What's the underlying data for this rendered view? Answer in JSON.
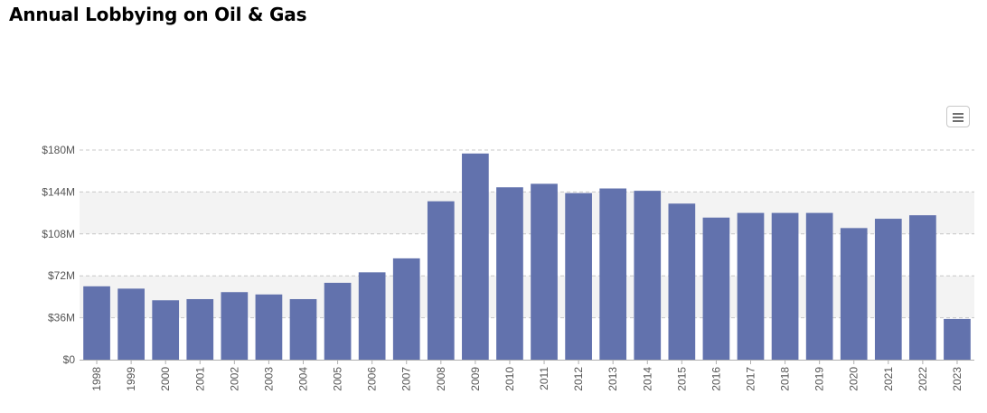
{
  "page": {
    "title": "Annual Lobbying on Oil & Gas"
  },
  "toolbar": {
    "menu_icon": "hamburger-menu-icon"
  },
  "colors": {
    "bar": "#6272ad",
    "grid": "#c8c8c8",
    "band": "#f3f3f3",
    "axis_text": "#555555"
  },
  "chart_data": {
    "type": "bar",
    "title": "Annual Lobbying on Oil & Gas",
    "xlabel": "",
    "ylabel": "",
    "ylim": [
      0,
      180
    ],
    "y_unit": "$M",
    "y_ticks": [
      {
        "value": 0,
        "label": "$0"
      },
      {
        "value": 36,
        "label": "$36M"
      },
      {
        "value": 72,
        "label": "$72M"
      },
      {
        "value": 108,
        "label": "$108M"
      },
      {
        "value": 144,
        "label": "$144M"
      },
      {
        "value": 180,
        "label": "$180M"
      }
    ],
    "grid": true,
    "shaded_bands": [
      [
        108,
        144
      ],
      [
        36,
        72
      ]
    ],
    "categories": [
      "1998",
      "1999",
      "2000",
      "2001",
      "2002",
      "2003",
      "2004",
      "2005",
      "2006",
      "2007",
      "2008",
      "2009",
      "2010",
      "2011",
      "2012",
      "2013",
      "2014",
      "2015",
      "2016",
      "2017",
      "2018",
      "2019",
      "2020",
      "2021",
      "2022",
      "2023"
    ],
    "values": [
      63,
      61,
      51,
      52,
      58,
      56,
      52,
      66,
      75,
      87,
      136,
      177,
      148,
      151,
      143,
      147,
      145,
      134,
      122,
      126,
      126,
      126,
      113,
      121,
      124,
      35
    ]
  }
}
